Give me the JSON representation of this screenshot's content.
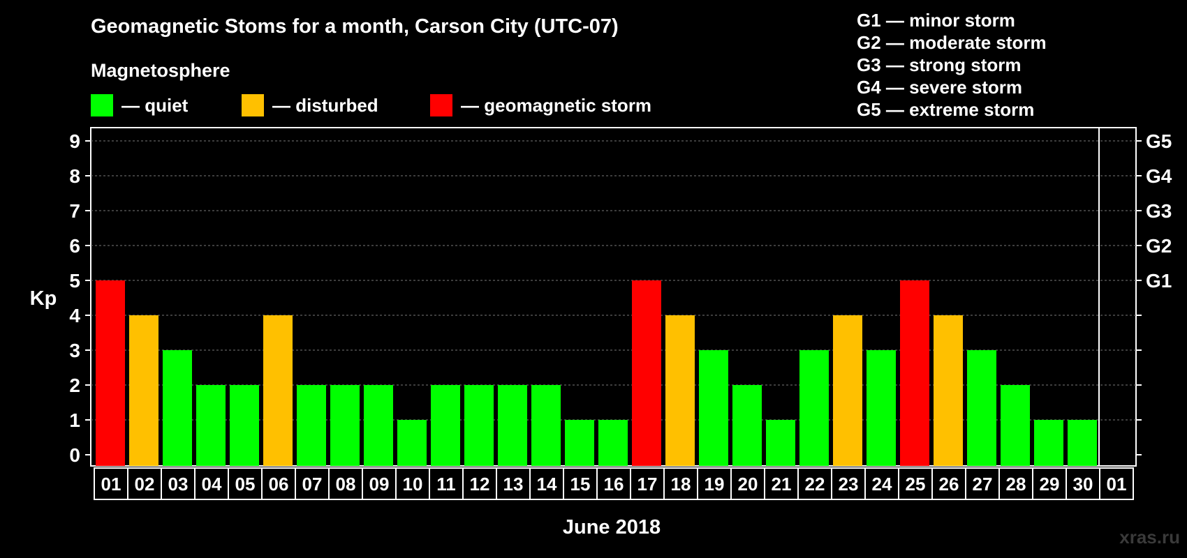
{
  "title": "Geomagnetic Stoms for a month, Carson City (UTC-07)",
  "subtitle": "Magnetosphere",
  "legend": [
    {
      "label": "— quiet",
      "color": "#00ff00"
    },
    {
      "label": "— disturbed",
      "color": "#ffc000"
    },
    {
      "label": "— geomagnetic storm",
      "color": "#ff0000"
    }
  ],
  "g_legend": [
    "G1 — minor storm",
    "G2 — moderate storm",
    "G3 — strong storm",
    "G4 — severe storm",
    "G5 — extreme storm"
  ],
  "watermark": "xras.ru",
  "chart_data": {
    "type": "bar",
    "title": "Geomagnetic Stoms for a month, Carson City (UTC-07)",
    "xlabel": "June 2018",
    "ylabel": "Kp",
    "ylim": [
      0,
      9
    ],
    "yticks": [
      0,
      1,
      2,
      3,
      4,
      5,
      6,
      7,
      8,
      9
    ],
    "right_ticks": [
      {
        "value": 5,
        "label": "G1"
      },
      {
        "value": 6,
        "label": "G2"
      },
      {
        "value": 7,
        "label": "G3"
      },
      {
        "value": 8,
        "label": "G4"
      },
      {
        "value": 9,
        "label": "G5"
      }
    ],
    "categories": [
      "01",
      "02",
      "03",
      "04",
      "05",
      "06",
      "07",
      "08",
      "09",
      "10",
      "11",
      "12",
      "13",
      "14",
      "15",
      "16",
      "17",
      "18",
      "19",
      "20",
      "21",
      "22",
      "23",
      "24",
      "25",
      "26",
      "27",
      "28",
      "29",
      "30",
      "01"
    ],
    "values": [
      5,
      4,
      3,
      2,
      2,
      4,
      2,
      2,
      2,
      1,
      2,
      2,
      2,
      2,
      1,
      1,
      5,
      4,
      3,
      2,
      1,
      3,
      4,
      3,
      5,
      4,
      3,
      2,
      1,
      1,
      null
    ],
    "colors": {
      "quiet": "#00ff00",
      "disturbed": "#ffc000",
      "storm": "#ff0000"
    },
    "grid": true
  }
}
